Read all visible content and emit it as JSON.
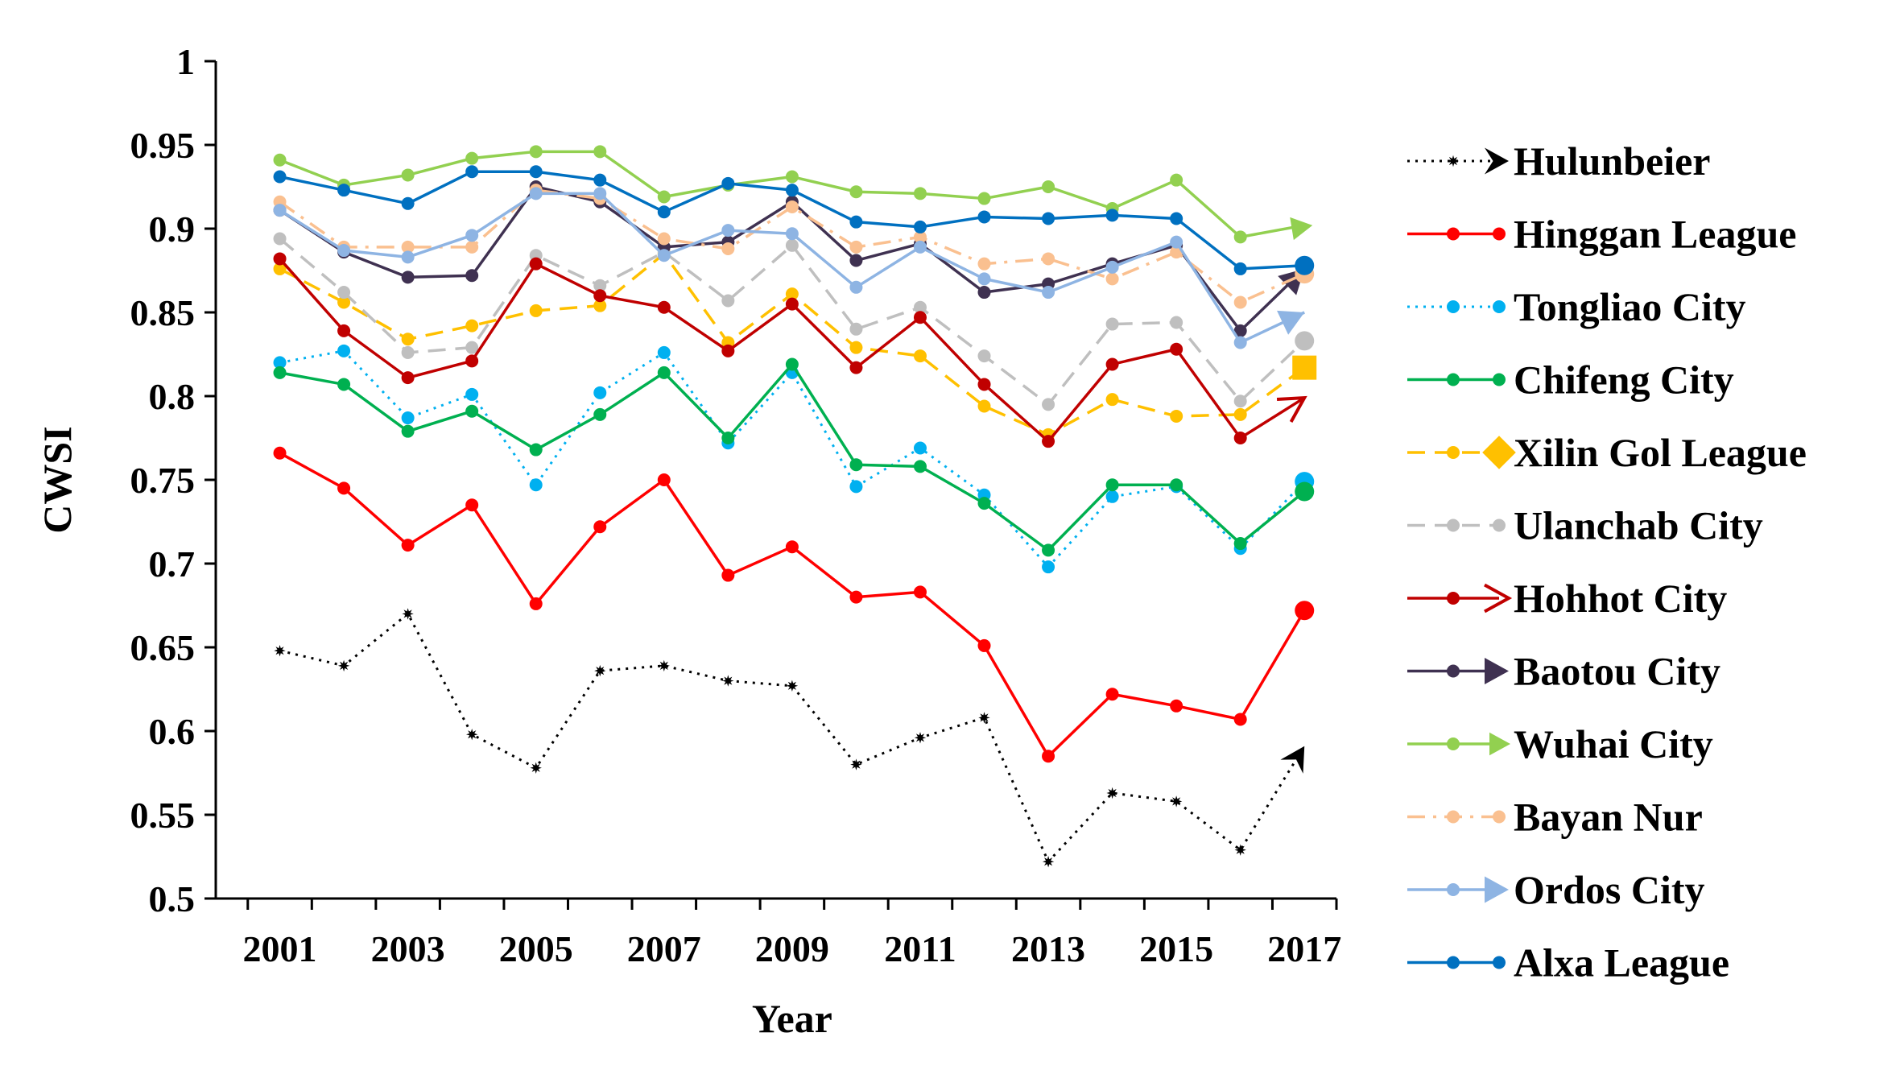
{
  "chart_data": {
    "type": "line",
    "title": "",
    "xlabel": "Year",
    "ylabel": "CWSI",
    "ylim": [
      0.5,
      1.0
    ],
    "yticks": [
      "0.5",
      "0.55",
      "0.6",
      "0.65",
      "0.7",
      "0.75",
      "0.8",
      "0.85",
      "0.9",
      "0.95",
      "1"
    ],
    "x": [
      2001,
      2002,
      2003,
      2004,
      2005,
      2006,
      2007,
      2008,
      2009,
      2010,
      2011,
      2012,
      2013,
      2014,
      2015,
      2016,
      2017
    ],
    "xticks": [
      "2001",
      "2003",
      "2005",
      "2007",
      "2009",
      "2011",
      "2013",
      "2015",
      "2017"
    ],
    "legend_position": "right",
    "grid": false,
    "series": [
      {
        "name": "Hulunbeier",
        "color": "#000000",
        "dash": "dotted",
        "marker": "star",
        "end_marker": "arrowhead",
        "values": [
          0.648,
          0.639,
          0.67,
          0.598,
          0.578,
          0.636,
          0.639,
          0.63,
          0.627,
          0.58,
          0.596,
          0.608,
          0.522,
          0.563,
          0.558,
          0.529,
          0.591
        ]
      },
      {
        "name": "Hinggan League",
        "color": "#ff0000",
        "dash": "solid",
        "marker": "circle",
        "end_marker": "circle",
        "values": [
          0.766,
          0.745,
          0.711,
          0.735,
          0.676,
          0.722,
          0.75,
          0.693,
          0.71,
          0.68,
          0.683,
          0.651,
          0.585,
          0.622,
          0.615,
          0.607,
          0.672
        ]
      },
      {
        "name": "Tongliao City",
        "color": "#00b0f0",
        "dash": "dotted",
        "marker": "circle",
        "end_marker": "circle",
        "values": [
          0.82,
          0.827,
          0.787,
          0.801,
          0.747,
          0.802,
          0.826,
          0.772,
          0.814,
          0.746,
          0.769,
          0.741,
          0.698,
          0.74,
          0.746,
          0.709,
          0.749
        ]
      },
      {
        "name": "Chifeng City",
        "color": "#00b050",
        "dash": "solid",
        "marker": "circle",
        "end_marker": "circle",
        "values": [
          0.814,
          0.807,
          0.779,
          0.791,
          0.768,
          0.789,
          0.814,
          0.775,
          0.819,
          0.759,
          0.758,
          0.736,
          0.708,
          0.747,
          0.747,
          0.712,
          0.743
        ]
      },
      {
        "name": "Xilin Gol League",
        "color": "#ffc000",
        "dash": "dash",
        "marker": "circle",
        "end_marker": "square",
        "values": [
          0.876,
          0.856,
          0.834,
          0.842,
          0.851,
          0.854,
          0.885,
          0.832,
          0.861,
          0.829,
          0.824,
          0.794,
          0.777,
          0.798,
          0.788,
          0.789,
          0.817
        ]
      },
      {
        "name": "Ulanchab City",
        "color": "#bfbfbf",
        "dash": "dash",
        "marker": "circle",
        "end_marker": "circle",
        "values": [
          0.894,
          0.862,
          0.826,
          0.829,
          0.884,
          0.866,
          0.886,
          0.857,
          0.89,
          0.84,
          0.853,
          0.824,
          0.795,
          0.843,
          0.844,
          0.797,
          0.833
        ]
      },
      {
        "name": "Hohhot City",
        "color": "#c00000",
        "dash": "solid",
        "marker": "circle",
        "end_marker": "arrow-open",
        "values": [
          0.882,
          0.839,
          0.811,
          0.821,
          0.879,
          0.86,
          0.853,
          0.827,
          0.855,
          0.817,
          0.847,
          0.807,
          0.773,
          0.819,
          0.828,
          0.775,
          0.799
        ]
      },
      {
        "name": "Baotou City",
        "color": "#3f3151",
        "dash": "solid",
        "marker": "circle",
        "end_marker": "arrow",
        "values": [
          0.911,
          0.886,
          0.871,
          0.872,
          0.925,
          0.916,
          0.889,
          0.892,
          0.916,
          0.881,
          0.891,
          0.862,
          0.867,
          0.879,
          0.89,
          0.839,
          0.876
        ]
      },
      {
        "name": "Wuhai City",
        "color": "#92d050",
        "dash": "solid",
        "marker": "circle",
        "end_marker": "triangle",
        "values": [
          0.941,
          0.926,
          0.932,
          0.942,
          0.946,
          0.946,
          0.919,
          0.926,
          0.931,
          0.922,
          0.921,
          0.918,
          0.925,
          0.912,
          0.929,
          0.895,
          0.902
        ]
      },
      {
        "name": "Bayan Nur",
        "color": "#fac090",
        "dash": "dashdot",
        "marker": "circle",
        "end_marker": "circle",
        "values": [
          0.916,
          0.889,
          0.889,
          0.889,
          0.923,
          0.918,
          0.894,
          0.888,
          0.913,
          0.889,
          0.895,
          0.879,
          0.882,
          0.87,
          0.886,
          0.856,
          0.873
        ]
      },
      {
        "name": "Ordos City",
        "color": "#8eb4e3",
        "dash": "solid",
        "marker": "circle",
        "end_marker": "arrow",
        "values": [
          0.911,
          0.887,
          0.883,
          0.896,
          0.921,
          0.921,
          0.884,
          0.899,
          0.897,
          0.865,
          0.889,
          0.87,
          0.862,
          0.877,
          0.892,
          0.832,
          0.85
        ]
      },
      {
        "name": "Alxa League",
        "color": "#0070c0",
        "dash": "solid",
        "marker": "circle",
        "end_marker": "circle",
        "values": [
          0.931,
          0.923,
          0.915,
          0.934,
          0.934,
          0.929,
          0.91,
          0.927,
          0.923,
          0.904,
          0.901,
          0.907,
          0.906,
          0.908,
          0.906,
          0.876,
          0.878
        ]
      }
    ]
  }
}
